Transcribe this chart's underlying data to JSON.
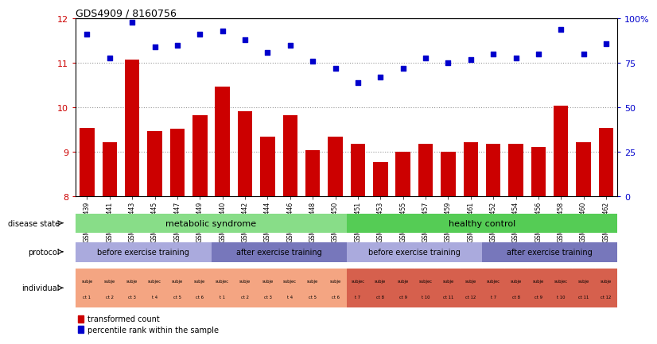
{
  "title": "GDS4909 / 8160756",
  "samples": [
    "GSM1070439",
    "GSM1070441",
    "GSM1070443",
    "GSM1070445",
    "GSM1070447",
    "GSM1070449",
    "GSM1070440",
    "GSM1070442",
    "GSM1070444",
    "GSM1070446",
    "GSM1070448",
    "GSM1070450",
    "GSM1070451",
    "GSM1070453",
    "GSM1070455",
    "GSM1070457",
    "GSM1070459",
    "GSM1070461",
    "GSM1070452",
    "GSM1070454",
    "GSM1070456",
    "GSM1070458",
    "GSM1070460",
    "GSM1070462"
  ],
  "bar_values": [
    9.55,
    9.22,
    11.08,
    9.48,
    9.52,
    9.82,
    10.47,
    9.92,
    9.35,
    9.82,
    9.05,
    9.35,
    9.18,
    8.78,
    9.01,
    9.18,
    9.0,
    9.22,
    9.18,
    9.18,
    9.12,
    10.05,
    9.22,
    9.55
  ],
  "dot_values_pct": [
    91,
    78,
    98,
    84,
    85,
    91,
    93,
    88,
    81,
    85,
    76,
    72,
    64,
    67,
    72,
    78,
    75,
    77,
    80,
    78,
    80,
    94,
    80,
    86
  ],
  "ylim_left": [
    8,
    12
  ],
  "ylim_right": [
    0,
    100
  ],
  "yticks_left": [
    8,
    9,
    10,
    11,
    12
  ],
  "yticks_right": [
    0,
    25,
    50,
    75,
    100
  ],
  "ytick_labels_right": [
    "0",
    "25",
    "50",
    "75",
    "100%"
  ],
  "bar_color": "#cc0000",
  "dot_color": "#0000cc",
  "ds_ms_color": "#88dd88",
  "ds_hc_color": "#55cc55",
  "pr_before_color": "#aaaadd",
  "pr_after_color": "#7777bb",
  "ind_ms_color": "#f4a582",
  "ind_hc_color": "#d6604d",
  "legend_red": "transformed count",
  "legend_blue": "percentile rank within the sample",
  "individual_labels": [
    [
      "subje",
      "ct 1"
    ],
    [
      "subje",
      "ct 2"
    ],
    [
      "subje",
      "ct 3"
    ],
    [
      "subjec",
      "t 4"
    ],
    [
      "subje",
      "ct 5"
    ],
    [
      "subje",
      "ct 6"
    ],
    [
      "subjec",
      "t 1"
    ],
    [
      "subje",
      "ct 2"
    ],
    [
      "subje",
      "ct 3"
    ],
    [
      "subjec",
      "t 4"
    ],
    [
      "subje",
      "ct 5"
    ],
    [
      "subje",
      "ct 6"
    ],
    [
      "subjec",
      "t 7"
    ],
    [
      "subje",
      "ct 8"
    ],
    [
      "subje",
      "ct 9"
    ],
    [
      "subjec",
      "t 10"
    ],
    [
      "subje",
      "ct 11"
    ],
    [
      "subje",
      "ct 12"
    ],
    [
      "subjec",
      "t 7"
    ],
    [
      "subje",
      "ct 8"
    ],
    [
      "subje",
      "ct 9"
    ],
    [
      "subjec",
      "t 10"
    ],
    [
      "subje",
      "ct 11"
    ],
    [
      "subje",
      "ct 12"
    ]
  ]
}
